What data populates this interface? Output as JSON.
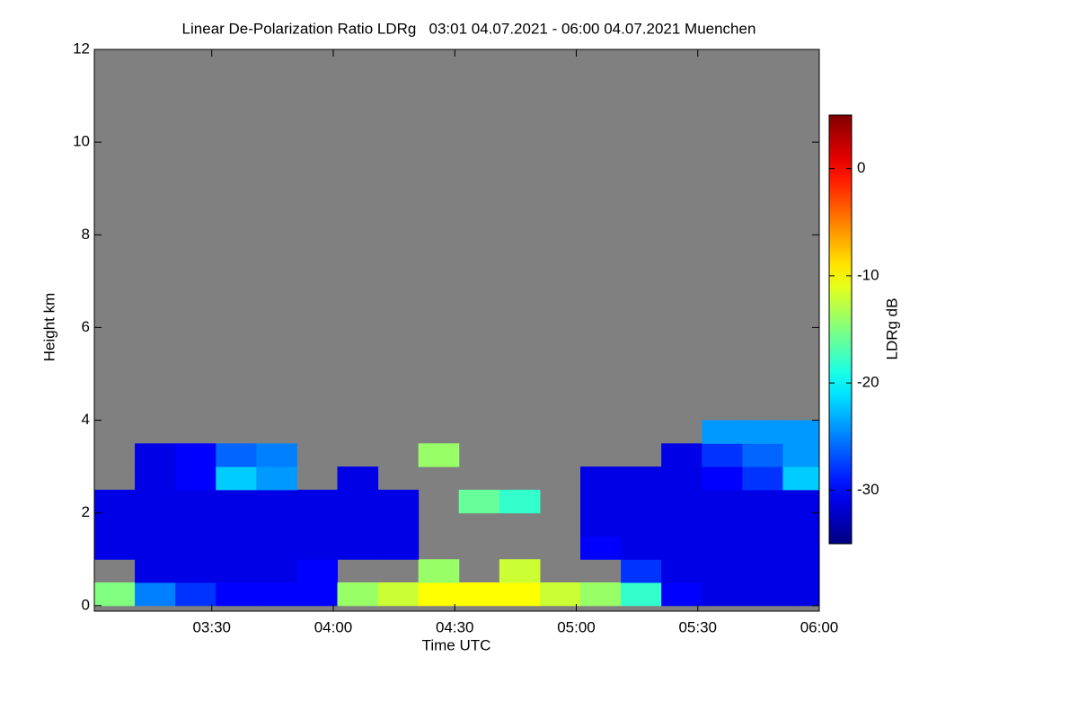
{
  "chart_data": {
    "type": "heatmap",
    "title": "Linear De-Polarization Ratio LDRg   03:01 04.07.2021 - 06:00 04.07.2021 Muenchen",
    "xlabel": "Time UTC",
    "ylabel": "Height km",
    "colorbar_label": "LDRg dB",
    "colormap": "jet",
    "missing_color": "#808080",
    "xlim": [
      181,
      360
    ],
    "xticks": [
      {
        "value": 210,
        "label": "03:30"
      },
      {
        "value": 240,
        "label": "04:00"
      },
      {
        "value": 270,
        "label": "04:30"
      },
      {
        "value": 300,
        "label": "05:00"
      },
      {
        "value": 330,
        "label": "05:30"
      },
      {
        "value": 360,
        "label": "06:00"
      }
    ],
    "ylim": [
      -0.12,
      12
    ],
    "yticks": [
      0,
      2,
      4,
      6,
      8,
      10,
      12
    ],
    "clim": [
      -35,
      5
    ],
    "cticks": [
      0,
      -10,
      -20,
      -30
    ],
    "x": [
      186,
      196,
      206,
      216,
      226,
      236,
      246,
      256,
      266,
      276,
      286,
      296,
      306,
      316,
      326,
      336,
      346,
      356
    ],
    "y": [
      0.25,
      0.75,
      1.25,
      1.75,
      2.25,
      2.75,
      3.25,
      3.75
    ],
    "values": [
      [
        -15,
        -25,
        -28,
        -30,
        -30,
        -30,
        -14,
        -12,
        -10,
        -10,
        -10,
        -12,
        -14,
        -18,
        -30,
        -31,
        -31,
        -31
      ],
      [
        null,
        -31,
        -31,
        -31,
        -31,
        -30,
        null,
        null,
        -14,
        null,
        -12,
        null,
        null,
        -28,
        -31,
        -31,
        -31,
        -31
      ],
      [
        -31,
        -31,
        -31,
        -31,
        -31,
        -31,
        -31,
        -31,
        null,
        null,
        null,
        null,
        -30,
        -31,
        -31,
        -31,
        -31,
        -31
      ],
      [
        -31,
        -31,
        -31,
        -31,
        -31,
        -31,
        -31,
        -31,
        null,
        null,
        null,
        null,
        -31,
        -31,
        -31,
        -31,
        -31,
        -31
      ],
      [
        -31,
        -31,
        -31,
        -31,
        -31,
        -31,
        -31,
        -31,
        null,
        -16,
        -18,
        null,
        -31,
        -31,
        -31,
        -31,
        -31,
        -31
      ],
      [
        null,
        -31,
        -30,
        -22,
        -24,
        null,
        -31,
        null,
        null,
        null,
        null,
        null,
        -31,
        -31,
        -31,
        -30,
        -28,
        -22
      ],
      [
        null,
        -31,
        -30,
        -26,
        -25,
        null,
        null,
        null,
        -14,
        null,
        null,
        null,
        null,
        null,
        -31,
        -28,
        -26,
        -24
      ],
      [
        null,
        null,
        null,
        null,
        null,
        null,
        null,
        null,
        null,
        null,
        null,
        null,
        null,
        null,
        null,
        -24,
        -24,
        -24
      ]
    ]
  }
}
